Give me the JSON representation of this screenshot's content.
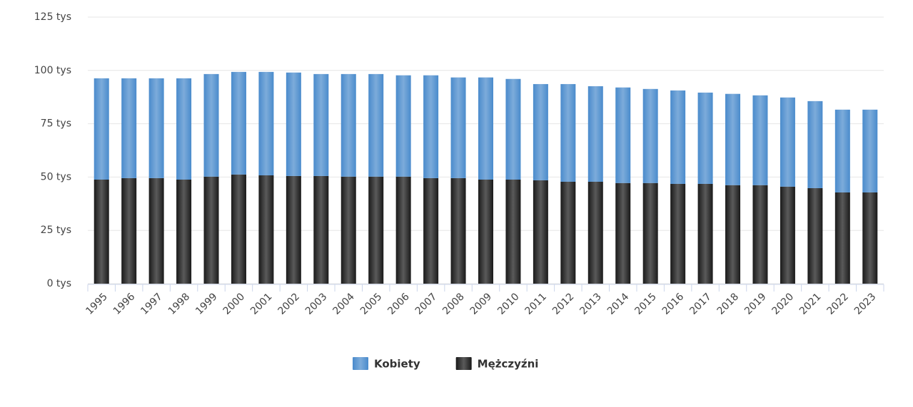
{
  "chart_data": {
    "type": "stacked-bar",
    "categories": [
      "1995",
      "1996",
      "1997",
      "1998",
      "1999",
      "2000",
      "2001",
      "2002",
      "2003",
      "2004",
      "2005",
      "2006",
      "2007",
      "2008",
      "2009",
      "2010",
      "2011",
      "2012",
      "2013",
      "2014",
      "2015",
      "2016",
      "2017",
      "2018",
      "2019",
      "2020",
      "2021",
      "2022",
      "2023"
    ],
    "series": [
      {
        "name": "Kobiety",
        "color": "#4a8bcc",
        "values": [
          47500,
          46800,
          46800,
          47500,
          48100,
          48100,
          48500,
          48500,
          47800,
          48100,
          48100,
          47500,
          48200,
          47200,
          47900,
          47200,
          45100,
          45800,
          44800,
          44800,
          44100,
          43800,
          42800,
          42800,
          42100,
          41800,
          40800,
          38800,
          38800
        ]
      },
      {
        "name": "Mężczyźni",
        "color": "#1a1a1a",
        "values": [
          48800,
          49500,
          49500,
          48800,
          50200,
          51200,
          50800,
          50500,
          50500,
          50200,
          50200,
          50200,
          49500,
          49500,
          48800,
          48800,
          48500,
          47800,
          47800,
          47200,
          47200,
          46800,
          46800,
          46200,
          46200,
          45500,
          44800,
          42800,
          42800
        ]
      }
    ],
    "ylim": [
      0,
      125000
    ],
    "yticks": [
      {
        "value": 0,
        "label": "0 tys"
      },
      {
        "value": 25000,
        "label": "25 tys"
      },
      {
        "value": 50000,
        "label": "50 tys"
      },
      {
        "value": 75000,
        "label": "75 tys"
      },
      {
        "value": 100000,
        "label": "100 tys"
      },
      {
        "value": 125000,
        "label": "125 tys"
      }
    ],
    "grid": true,
    "legend": "bottom"
  }
}
